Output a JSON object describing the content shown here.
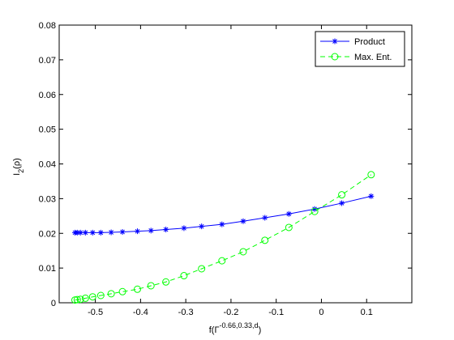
{
  "chart_data": {
    "type": "line",
    "xlabel": {
      "base": "f(Γ",
      "sup": "-0.66,0.33,d",
      "rest": ")"
    },
    "ylabel": {
      "base": "I",
      "sub": "2",
      "rest": "(ρ)"
    },
    "xlim": [
      -0.58,
      0.2
    ],
    "ylim": [
      0,
      0.08
    ],
    "xticks": [
      -0.5,
      -0.4,
      -0.3,
      -0.2,
      -0.1,
      0,
      0.1
    ],
    "yticks": [
      0,
      0.01,
      0.02,
      0.03,
      0.04,
      0.05,
      0.06,
      0.07,
      0.08
    ],
    "legend": "northeast",
    "series": [
      {
        "name": "Product",
        "color": "#0000ff",
        "marker": "star",
        "linestyle": "solid",
        "x": [
          -0.545,
          -0.54,
          -0.533,
          -0.522,
          -0.506,
          -0.488,
          -0.465,
          -0.44,
          -0.407,
          -0.377,
          -0.344,
          -0.304,
          -0.265,
          -0.22,
          -0.173,
          -0.125,
          -0.072,
          -0.015,
          0.045,
          0.11
        ],
        "values": [
          0.0202,
          0.0202,
          0.0202,
          0.0202,
          0.0202,
          0.0202,
          0.0203,
          0.0204,
          0.0206,
          0.0208,
          0.0211,
          0.0215,
          0.022,
          0.0226,
          0.0235,
          0.0245,
          0.0256,
          0.027,
          0.0287,
          0.0307
        ]
      },
      {
        "name": "Max. Ent.",
        "color": "#00ff00",
        "marker": "circle",
        "linestyle": "dashed",
        "x": [
          -0.545,
          -0.54,
          -0.533,
          -0.522,
          -0.506,
          -0.488,
          -0.465,
          -0.44,
          -0.407,
          -0.377,
          -0.344,
          -0.304,
          -0.265,
          -0.22,
          -0.173,
          -0.125,
          -0.072,
          -0.015,
          0.045,
          0.11
        ],
        "values": [
          0.0008,
          0.0009,
          0.001,
          0.0013,
          0.0017,
          0.0021,
          0.0026,
          0.0032,
          0.0039,
          0.0049,
          0.006,
          0.0078,
          0.0098,
          0.0121,
          0.0147,
          0.018,
          0.0217,
          0.0263,
          0.0311,
          0.0369
        ]
      }
    ]
  }
}
